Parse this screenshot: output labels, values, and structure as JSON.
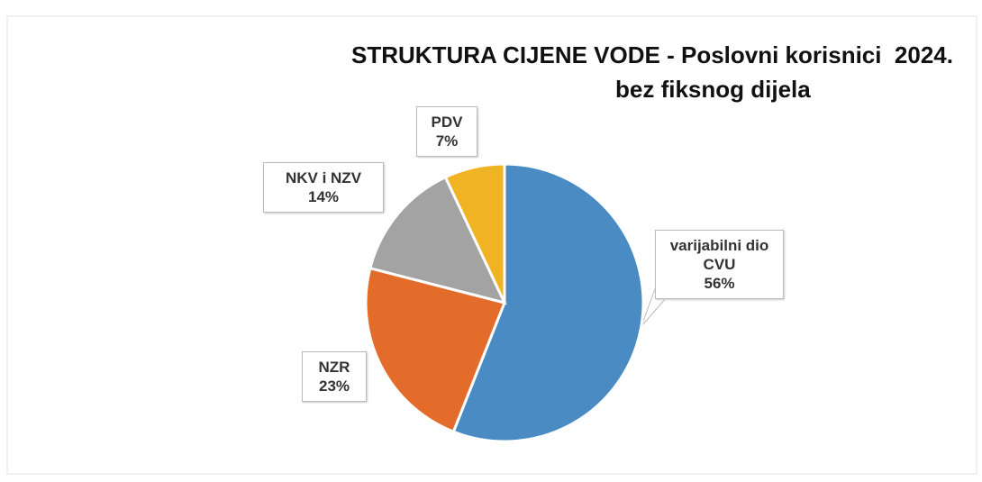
{
  "chart_data": {
    "type": "pie",
    "title": "STRUKTURA CIJENE VODE - Poslovni korisnici  2024.",
    "subtitle": "bez fiksnog dijela",
    "categories": [
      "varijabilni dio CVU",
      "NZR",
      "NKV i NZV",
      "PDV"
    ],
    "values": [
      56,
      23,
      14,
      7
    ],
    "value_labels": [
      "56%",
      "23%",
      "14%",
      "7%"
    ],
    "colors": [
      "#4a8bc4",
      "#e46c2a",
      "#a3a3a3",
      "#f0b323"
    ]
  }
}
